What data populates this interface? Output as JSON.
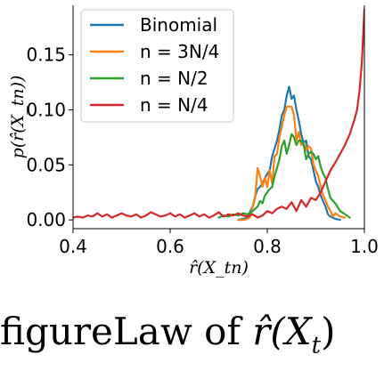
{
  "chart_data": {
    "type": "line",
    "title": "",
    "xlabel": "r̂(X_tn)",
    "ylabel": "p(r̂(X_tn))",
    "xlim": [
      0.4,
      1.0
    ],
    "ylim": [
      -0.008,
      0.195
    ],
    "xticks": [
      "0.4",
      "0.6",
      "0.8",
      "1.0"
    ],
    "yticks": [
      "0.00",
      "0.05",
      "0.10",
      "0.15"
    ],
    "grid": false,
    "legend_position": "top-left",
    "series": [
      {
        "name": "Binomial",
        "color": "#1f77b4",
        "x": [
          0.74,
          0.75,
          0.76,
          0.765,
          0.77,
          0.775,
          0.78,
          0.785,
          0.79,
          0.795,
          0.8,
          0.805,
          0.81,
          0.815,
          0.82,
          0.825,
          0.83,
          0.835,
          0.84,
          0.845,
          0.85,
          0.855,
          0.86,
          0.865,
          0.87,
          0.875,
          0.88,
          0.885,
          0.89,
          0.895,
          0.9,
          0.905,
          0.91,
          0.915,
          0.92,
          0.925,
          0.93,
          0.94,
          0.95
        ],
        "y": [
          0.0,
          0.001,
          0.002,
          0.008,
          0.012,
          0.021,
          0.028,
          0.03,
          0.033,
          0.038,
          0.042,
          0.045,
          0.058,
          0.065,
          0.072,
          0.082,
          0.095,
          0.1,
          0.113,
          0.121,
          0.11,
          0.113,
          0.1,
          0.09,
          0.078,
          0.07,
          0.072,
          0.058,
          0.055,
          0.045,
          0.035,
          0.03,
          0.022,
          0.017,
          0.012,
          0.005,
          0.003,
          0.001,
          0.0
        ]
      },
      {
        "name": "n = 3N/4",
        "color": "#ff7f0e",
        "x": [
          0.74,
          0.75,
          0.76,
          0.765,
          0.77,
          0.775,
          0.78,
          0.785,
          0.79,
          0.795,
          0.8,
          0.805,
          0.81,
          0.815,
          0.82,
          0.825,
          0.83,
          0.835,
          0.84,
          0.845,
          0.85,
          0.855,
          0.86,
          0.865,
          0.87,
          0.875,
          0.88,
          0.885,
          0.89,
          0.895,
          0.9,
          0.905,
          0.91,
          0.915,
          0.92,
          0.925,
          0.93,
          0.935,
          0.94,
          0.95,
          0.96
        ],
        "y": [
          0.0,
          0.0,
          0.001,
          0.003,
          0.012,
          0.02,
          0.047,
          0.04,
          0.03,
          0.038,
          0.03,
          0.045,
          0.033,
          0.058,
          0.06,
          0.075,
          0.085,
          0.095,
          0.103,
          0.103,
          0.103,
          0.095,
          0.072,
          0.08,
          0.068,
          0.07,
          0.063,
          0.067,
          0.065,
          0.05,
          0.045,
          0.04,
          0.03,
          0.022,
          0.018,
          0.012,
          0.008,
          0.003,
          0.006,
          0.003,
          0.002
        ]
      },
      {
        "name": "n = N/2",
        "color": "#2ca02c",
        "x": [
          0.7,
          0.71,
          0.72,
          0.73,
          0.74,
          0.75,
          0.76,
          0.77,
          0.775,
          0.78,
          0.785,
          0.79,
          0.795,
          0.8,
          0.805,
          0.81,
          0.815,
          0.82,
          0.825,
          0.83,
          0.835,
          0.84,
          0.845,
          0.85,
          0.855,
          0.86,
          0.865,
          0.87,
          0.875,
          0.88,
          0.885,
          0.89,
          0.895,
          0.9,
          0.905,
          0.91,
          0.915,
          0.92,
          0.925,
          0.93,
          0.94,
          0.95,
          0.96,
          0.97
        ],
        "y": [
          0.002,
          0.004,
          0.003,
          0.005,
          0.004,
          0.006,
          0.005,
          0.008,
          0.01,
          0.012,
          0.017,
          0.015,
          0.022,
          0.025,
          0.028,
          0.03,
          0.04,
          0.047,
          0.055,
          0.067,
          0.072,
          0.06,
          0.068,
          0.078,
          0.075,
          0.068,
          0.072,
          0.072,
          0.068,
          0.055,
          0.06,
          0.062,
          0.06,
          0.055,
          0.058,
          0.048,
          0.042,
          0.038,
          0.028,
          0.02,
          0.015,
          0.008,
          0.005,
          0.002
        ]
      },
      {
        "name": "n = N/4",
        "color": "#d62728",
        "x": [
          0.4,
          0.41,
          0.42,
          0.43,
          0.44,
          0.45,
          0.46,
          0.47,
          0.48,
          0.49,
          0.5,
          0.51,
          0.52,
          0.53,
          0.54,
          0.55,
          0.56,
          0.57,
          0.58,
          0.59,
          0.6,
          0.61,
          0.62,
          0.63,
          0.64,
          0.65,
          0.66,
          0.67,
          0.68,
          0.69,
          0.7,
          0.71,
          0.72,
          0.73,
          0.74,
          0.75,
          0.76,
          0.77,
          0.78,
          0.79,
          0.8,
          0.81,
          0.82,
          0.83,
          0.84,
          0.85,
          0.86,
          0.87,
          0.88,
          0.89,
          0.9,
          0.91,
          0.92,
          0.93,
          0.94,
          0.95,
          0.96,
          0.97,
          0.98,
          0.985,
          0.99,
          0.995,
          1.0
        ],
        "y": [
          0.002,
          0.003,
          0.002,
          0.004,
          0.003,
          0.006,
          0.003,
          0.005,
          0.002,
          0.004,
          0.006,
          0.004,
          0.003,
          0.005,
          0.002,
          0.004,
          0.007,
          0.005,
          0.003,
          0.004,
          0.006,
          0.003,
          0.005,
          0.002,
          0.004,
          0.006,
          0.003,
          0.005,
          0.002,
          0.004,
          0.007,
          0.003,
          0.005,
          0.004,
          0.006,
          0.004,
          0.003,
          0.005,
          0.002,
          0.004,
          0.008,
          0.006,
          0.01,
          0.012,
          0.01,
          0.016,
          0.008,
          0.018,
          0.012,
          0.02,
          0.018,
          0.025,
          0.035,
          0.045,
          0.052,
          0.06,
          0.068,
          0.078,
          0.092,
          0.1,
          0.118,
          0.145,
          0.192
        ]
      }
    ]
  },
  "caption": {
    "prefix": "figureLaw of ",
    "math": "r̂(X",
    "math_sub": "t",
    "suffix": ")"
  }
}
